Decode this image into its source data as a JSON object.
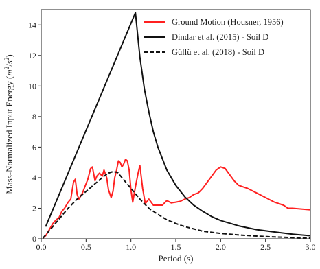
{
  "chart_data": {
    "type": "line",
    "xlabel": "Period (s)",
    "ylabel_text": "Mass-Normalized Input Energy (",
    "ylabel_unit_base": "m",
    "ylabel_unit_exp1": "2",
    "ylabel_unit_slash": "/",
    "ylabel_unit_s": "s",
    "ylabel_unit_exp2": "2",
    "ylabel_close": ")",
    "xlim": [
      0.0,
      3.0
    ],
    "ylim": [
      0,
      15
    ],
    "xticks": [
      "0.0",
      "0.5",
      "1.0",
      "1.5",
      "2.0",
      "2.5",
      "3.0"
    ],
    "xtick_values": [
      0.0,
      0.5,
      1.0,
      1.5,
      2.0,
      2.5,
      3.0
    ],
    "yticks": [
      "0",
      "2",
      "4",
      "6",
      "8",
      "10",
      "12",
      "14"
    ],
    "ytick_values": [
      0,
      2,
      4,
      6,
      8,
      10,
      12,
      14
    ],
    "grid": false,
    "legend_position": "top-right",
    "series": [
      {
        "name": "Ground Motion (Housner, 1956)",
        "color": "#ff2020",
        "style": "solid",
        "x": [
          0.02,
          0.05,
          0.08,
          0.1,
          0.13,
          0.16,
          0.2,
          0.23,
          0.26,
          0.3,
          0.33,
          0.36,
          0.38,
          0.4,
          0.42,
          0.44,
          0.46,
          0.5,
          0.52,
          0.55,
          0.57,
          0.6,
          0.62,
          0.65,
          0.68,
          0.7,
          0.73,
          0.75,
          0.78,
          0.8,
          0.82,
          0.84,
          0.86,
          0.88,
          0.9,
          0.92,
          0.94,
          0.96,
          0.98,
          1.0,
          1.02,
          1.05,
          1.08,
          1.1,
          1.13,
          1.16,
          1.2,
          1.25,
          1.3,
          1.35,
          1.4,
          1.45,
          1.5,
          1.55,
          1.6,
          1.65,
          1.7,
          1.75,
          1.8,
          1.85,
          1.9,
          1.95,
          2.0,
          2.05,
          2.1,
          2.15,
          2.2,
          2.25,
          2.3,
          2.4,
          2.5,
          2.6,
          2.7,
          2.75,
          2.8,
          2.9,
          3.0
        ],
        "y": [
          0.05,
          0.2,
          0.5,
          0.7,
          1.0,
          1.2,
          1.4,
          1.8,
          2.0,
          2.4,
          2.6,
          3.7,
          3.9,
          2.9,
          2.6,
          2.8,
          3.0,
          3.6,
          3.9,
          4.6,
          4.7,
          3.8,
          4.1,
          4.3,
          4.1,
          4.5,
          4.0,
          3.2,
          2.7,
          3.1,
          4.0,
          4.5,
          5.1,
          5.0,
          4.7,
          4.9,
          5.2,
          5.1,
          4.5,
          3.2,
          2.4,
          3.4,
          4.3,
          4.8,
          3.3,
          2.3,
          2.6,
          2.2,
          2.2,
          2.2,
          2.5,
          2.35,
          2.4,
          2.45,
          2.6,
          2.7,
          2.9,
          3.0,
          3.3,
          3.7,
          4.1,
          4.5,
          4.7,
          4.6,
          4.2,
          3.8,
          3.5,
          3.4,
          3.3,
          3.0,
          2.7,
          2.4,
          2.2,
          2.0,
          2.0,
          1.95,
          1.9
        ]
      },
      {
        "name": "Dindar et al. (2015) - Soil D",
        "color": "#111111",
        "style": "solid",
        "x": [
          0.05,
          1.05,
          1.1,
          1.15,
          1.2,
          1.25,
          1.3,
          1.4,
          1.5,
          1.6,
          1.7,
          1.8,
          1.9,
          2.0,
          2.2,
          2.4,
          2.6,
          2.8,
          3.0
        ],
        "y": [
          0.8,
          14.8,
          11.9,
          9.8,
          8.3,
          7.0,
          6.0,
          4.5,
          3.5,
          2.75,
          2.2,
          1.8,
          1.45,
          1.2,
          0.85,
          0.6,
          0.45,
          0.3,
          0.2
        ]
      },
      {
        "name": "Güllü et al. (2018) - Soil D",
        "color": "#111111",
        "style": "dashed",
        "x": [
          0.02,
          0.1,
          0.2,
          0.3,
          0.4,
          0.5,
          0.6,
          0.7,
          0.75,
          0.8,
          0.85,
          0.9,
          1.0,
          1.1,
          1.2,
          1.3,
          1.4,
          1.5,
          1.6,
          1.7,
          1.8,
          2.0,
          2.2,
          2.4,
          2.6,
          2.8,
          3.0
        ],
        "y": [
          0.05,
          0.6,
          1.3,
          2.0,
          2.6,
          3.1,
          3.6,
          4.1,
          4.3,
          4.4,
          4.35,
          4.0,
          3.3,
          2.6,
          2.0,
          1.6,
          1.25,
          1.0,
          0.8,
          0.65,
          0.5,
          0.35,
          0.25,
          0.18,
          0.12,
          0.08,
          0.05
        ]
      }
    ]
  }
}
